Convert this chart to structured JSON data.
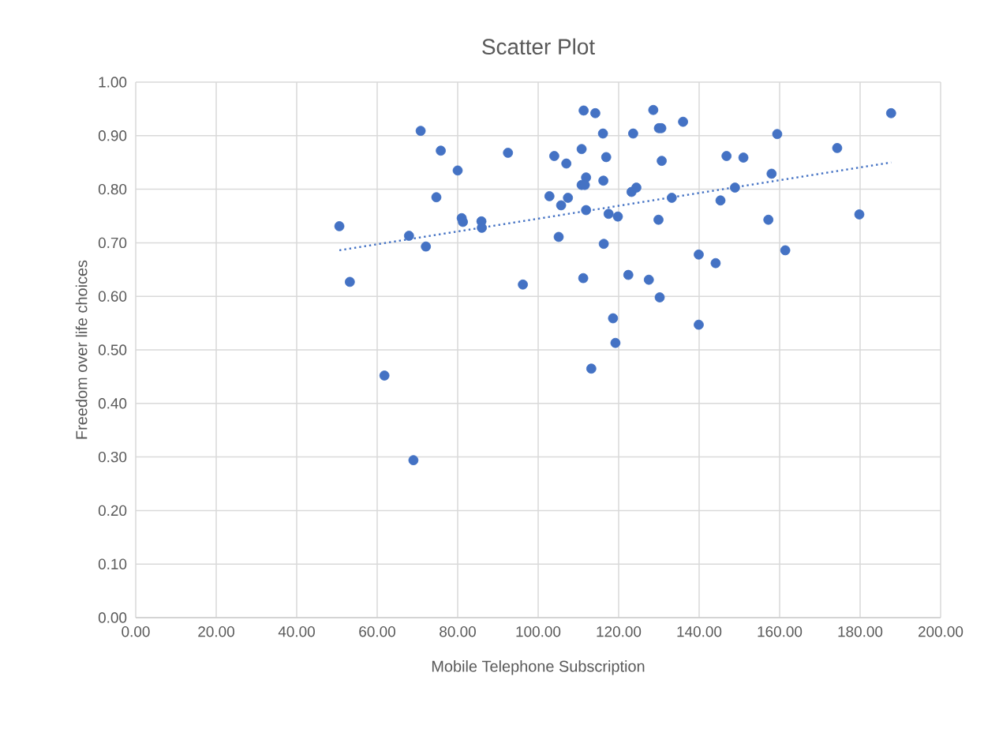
{
  "chart_data": {
    "type": "scatter",
    "title": "Scatter Plot",
    "xlabel": "Mobile Telephone Subscription",
    "ylabel": "Freedom over life choices",
    "xlim": [
      0,
      200
    ],
    "ylim": [
      0,
      1
    ],
    "xticks": [
      {
        "value": 0,
        "label": "0.00"
      },
      {
        "value": 20,
        "label": "20.00"
      },
      {
        "value": 40,
        "label": "40.00"
      },
      {
        "value": 60,
        "label": "60.00"
      },
      {
        "value": 80,
        "label": "80.00"
      },
      {
        "value": 100,
        "label": "100.00"
      },
      {
        "value": 120,
        "label": "120.00"
      },
      {
        "value": 140,
        "label": "140.00"
      },
      {
        "value": 160,
        "label": "160.00"
      },
      {
        "value": 180,
        "label": "180.00"
      },
      {
        "value": 200,
        "label": "200.00"
      }
    ],
    "yticks": [
      {
        "value": 0,
        "label": "0.00"
      },
      {
        "value": 0.1,
        "label": "0.10"
      },
      {
        "value": 0.2,
        "label": "0.20"
      },
      {
        "value": 0.3,
        "label": "0.30"
      },
      {
        "value": 0.4,
        "label": "0.40"
      },
      {
        "value": 0.5,
        "label": "0.50"
      },
      {
        "value": 0.6,
        "label": "0.60"
      },
      {
        "value": 0.7,
        "label": "0.70"
      },
      {
        "value": 0.8,
        "label": "0.80"
      },
      {
        "value": 0.9,
        "label": "0.90"
      },
      {
        "value": 1,
        "label": "1.00"
      }
    ],
    "grid": true,
    "marker": "circle",
    "series": [
      {
        "color": "#4472c4",
        "x": [
          70.8,
          75.8,
          80.0,
          92.5,
          74.7,
          50.6,
          67.9,
          72.1,
          81.0,
          81.3,
          85.9,
          86.0,
          53.2,
          96.2,
          61.8,
          69.0,
          111.3,
          114.2,
          128.6,
          116.1,
          123.6,
          130.0,
          130.6,
          136.0,
          104.0,
          107.0,
          110.8,
          116.9,
          130.7,
          111.9,
          110.8,
          111.6,
          116.2,
          123.2,
          124.4,
          102.8,
          107.4,
          105.7,
          133.2,
          111.9,
          117.5,
          119.8,
          129.9,
          105.1,
          116.3,
          111.2,
          122.4,
          127.5,
          130.2,
          118.6,
          119.2,
          113.2,
          187.7,
          159.4,
          146.8,
          151.0,
          174.3,
          158.0,
          148.9,
          145.3,
          157.2,
          179.8,
          139.9,
          144.1,
          161.4,
          139.9
        ],
        "values": [
          0.909,
          0.872,
          0.835,
          0.868,
          0.785,
          0.731,
          0.713,
          0.693,
          0.746,
          0.739,
          0.74,
          0.728,
          0.627,
          0.622,
          0.452,
          0.294,
          0.947,
          0.942,
          0.948,
          0.904,
          0.904,
          0.914,
          0.914,
          0.926,
          0.862,
          0.848,
          0.875,
          0.86,
          0.853,
          0.822,
          0.808,
          0.808,
          0.816,
          0.795,
          0.803,
          0.787,
          0.784,
          0.77,
          0.784,
          0.761,
          0.754,
          0.749,
          0.743,
          0.711,
          0.698,
          0.634,
          0.64,
          0.631,
          0.598,
          0.559,
          0.513,
          0.465,
          0.942,
          0.903,
          0.862,
          0.859,
          0.877,
          0.829,
          0.803,
          0.779,
          0.743,
          0.753,
          0.678,
          0.662,
          0.686,
          0.547
        ]
      },
      {
        "type": "line",
        "color": "#4472c4",
        "line_style": "dotted",
        "marker": "none",
        "x": [
          50.6,
          187.7
        ],
        "values": [
          0.686,
          0.85
        ]
      }
    ]
  }
}
